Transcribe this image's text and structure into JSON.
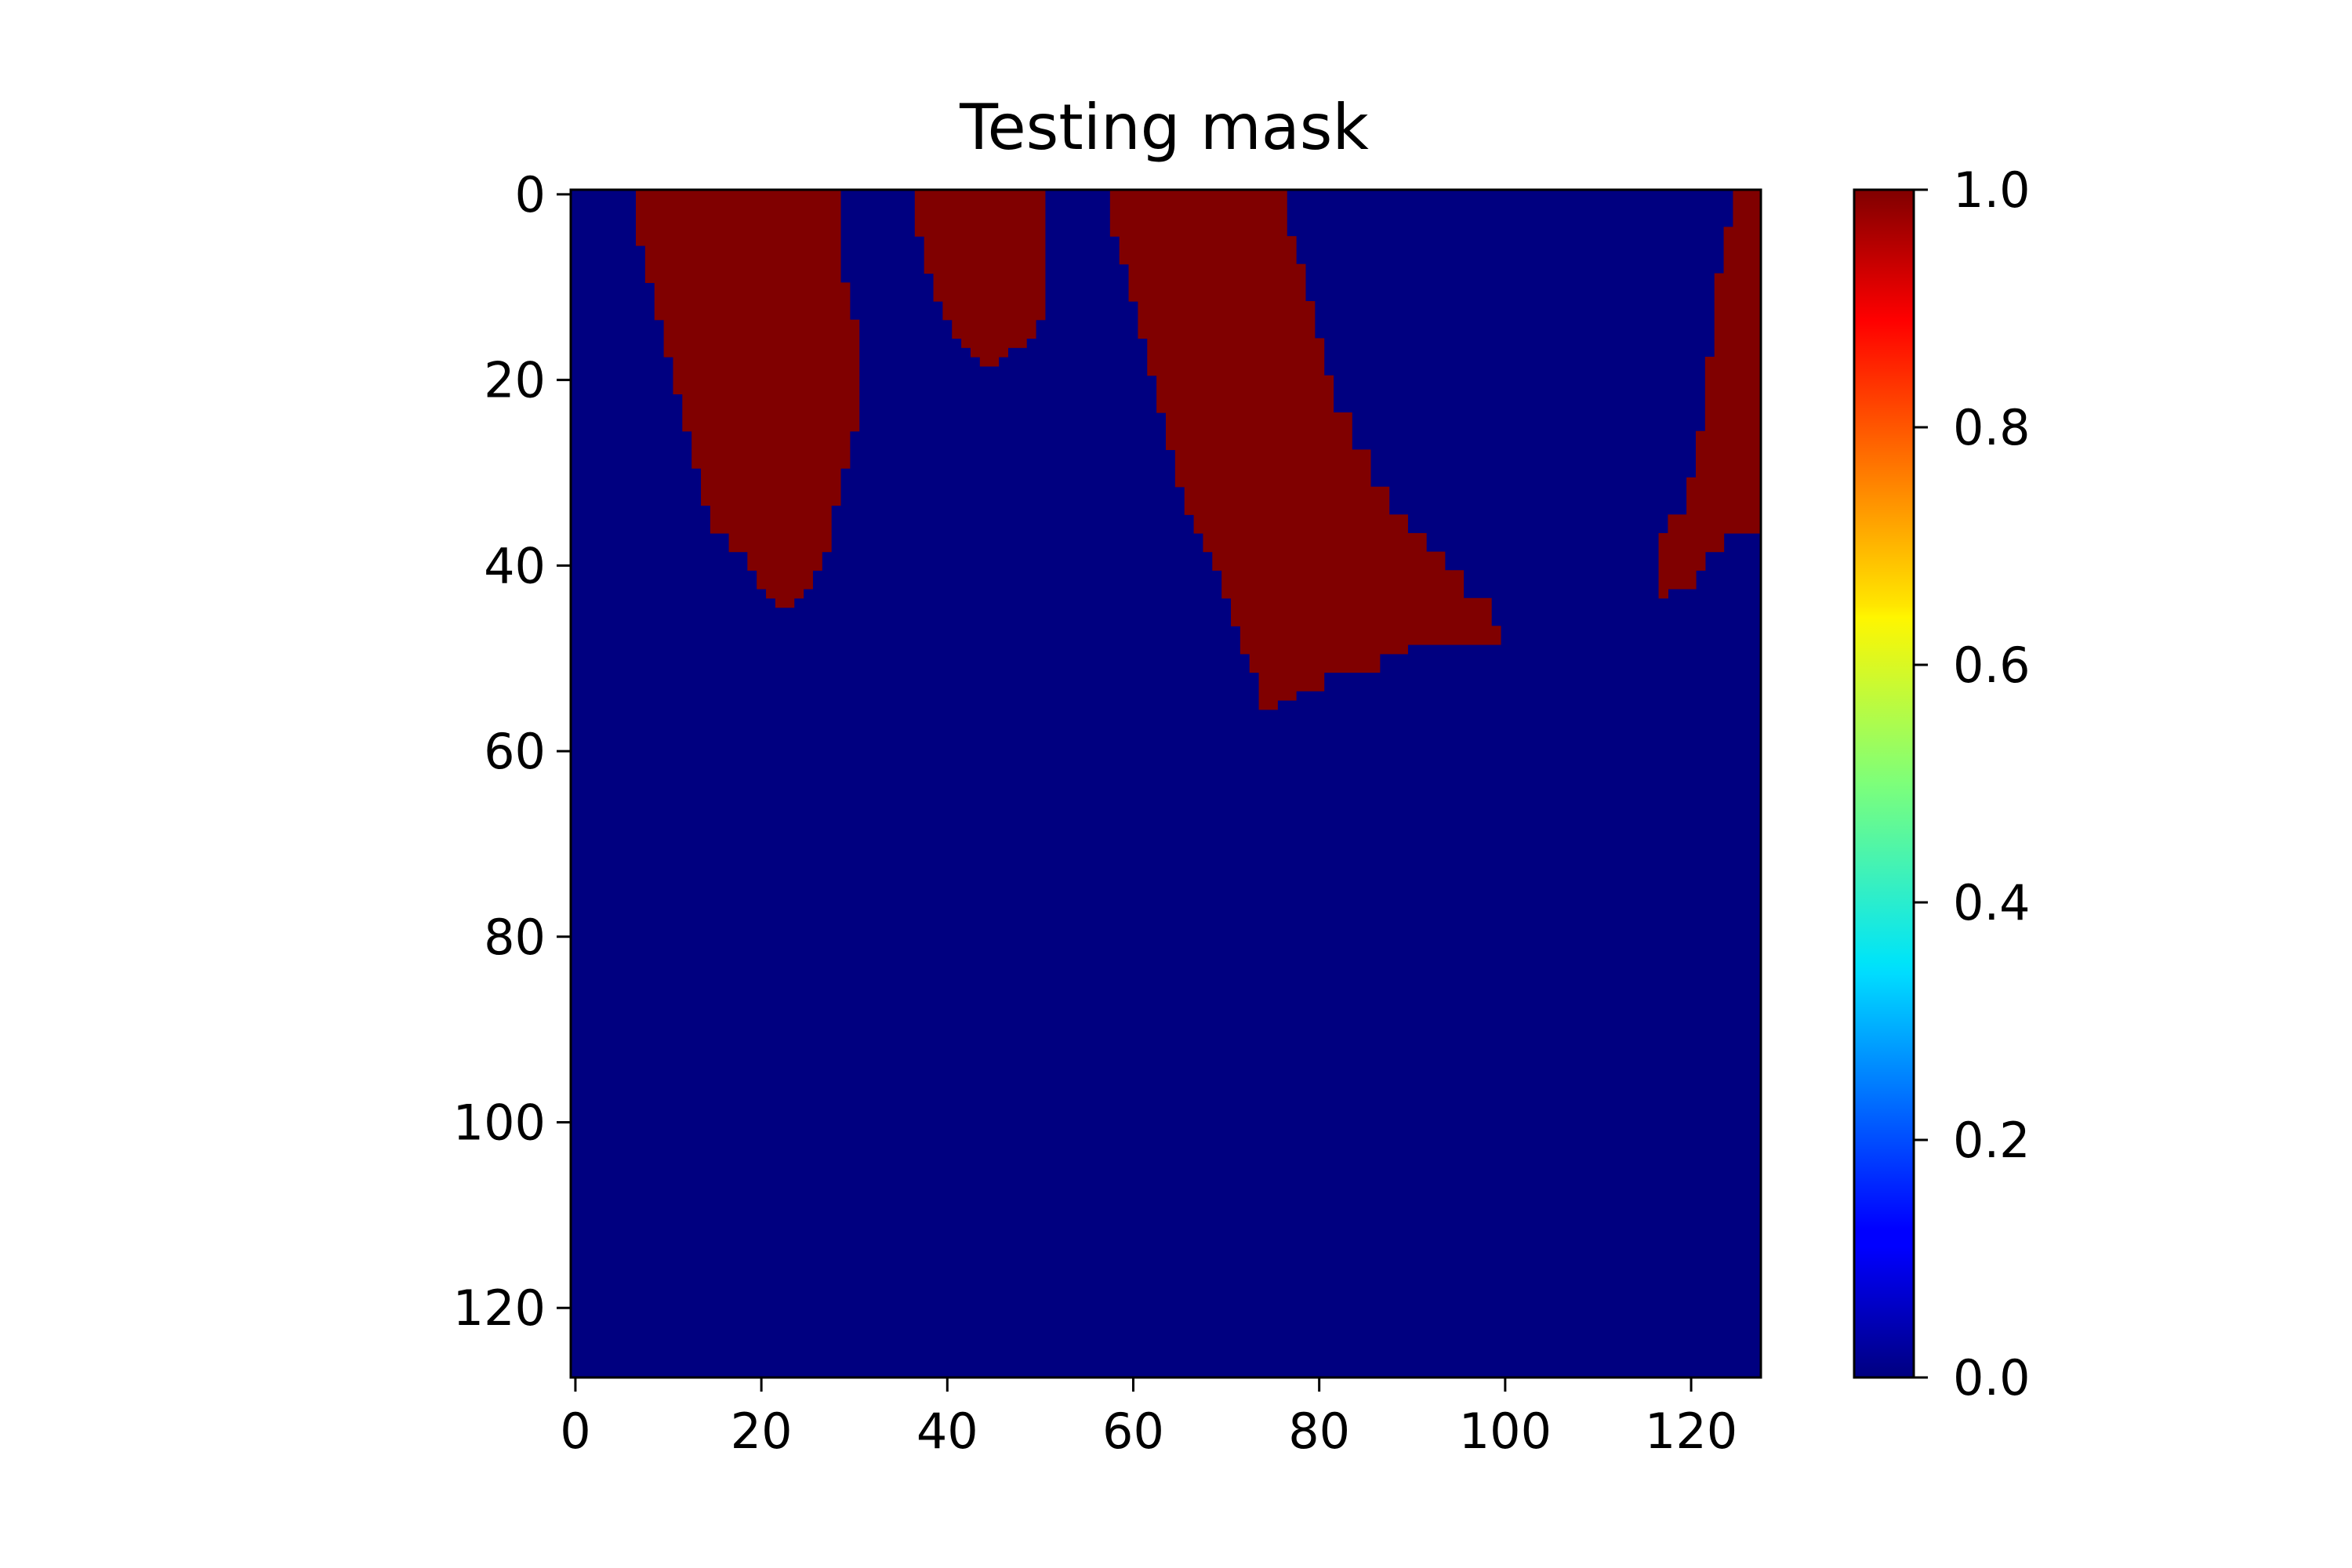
{
  "chart_data": {
    "type": "heatmap",
    "title": "Testing mask",
    "xlabel": "",
    "ylabel": "",
    "grid": false,
    "colormap": "jet",
    "xlim": [
      -0.5,
      127.5
    ],
    "ylim": [
      127.5,
      -0.5
    ],
    "x_ticks": [
      0,
      20,
      40,
      60,
      80,
      100,
      120
    ],
    "y_ticks": [
      0,
      20,
      40,
      60,
      80,
      100,
      120
    ],
    "x_tick_labels": [
      "0",
      "20",
      "40",
      "60",
      "80",
      "100",
      "120"
    ],
    "y_tick_labels": [
      "0",
      "20",
      "40",
      "60",
      "80",
      "100",
      "120"
    ],
    "colorbar": {
      "range": [
        0.0,
        1.0
      ],
      "ticks": [
        0.0,
        0.2,
        0.4,
        0.6,
        0.8,
        1.0
      ],
      "tick_labels": [
        "0.0",
        "0.2",
        "0.4",
        "0.6",
        "0.8",
        "1.0"
      ]
    },
    "grid_size": [
      128,
      128
    ],
    "background_value": 0,
    "regions_value": 1,
    "regions": [
      {
        "name": "region-1",
        "top": [
          [
            7,
            29
          ],
          [
            10,
            30
          ],
          [
            12,
            30
          ]
        ],
        "boundary": [
          [
            0,
            7,
            29
          ],
          [
            6,
            8,
            29
          ],
          [
            10,
            9,
            30
          ],
          [
            14,
            10,
            31
          ],
          [
            18,
            11,
            31
          ],
          [
            22,
            12,
            31
          ],
          [
            26,
            13,
            30
          ],
          [
            30,
            14,
            29
          ],
          [
            34,
            15,
            28
          ],
          [
            37,
            17,
            28
          ],
          [
            39,
            19,
            27
          ],
          [
            41,
            20,
            26
          ],
          [
            43,
            21,
            25
          ],
          [
            44,
            22,
            24
          ]
        ]
      },
      {
        "name": "region-2",
        "boundary": [
          [
            0,
            37,
            51
          ],
          [
            5,
            38,
            51
          ],
          [
            9,
            39,
            51
          ],
          [
            12,
            40,
            51
          ],
          [
            14,
            41,
            50
          ],
          [
            16,
            42,
            49
          ],
          [
            17,
            43,
            47
          ],
          [
            18,
            44,
            46
          ]
        ]
      },
      {
        "name": "region-3",
        "boundary": [
          [
            0,
            58,
            77
          ],
          [
            5,
            59,
            78
          ],
          [
            8,
            60,
            79
          ],
          [
            12,
            61,
            80
          ],
          [
            16,
            62,
            81
          ],
          [
            20,
            63,
            82
          ],
          [
            24,
            64,
            84
          ],
          [
            28,
            65,
            86
          ],
          [
            32,
            66,
            88
          ],
          [
            35,
            67,
            90
          ],
          [
            37,
            68,
            92
          ],
          [
            39,
            69,
            94
          ],
          [
            41,
            70,
            96
          ],
          [
            44,
            71,
            99
          ],
          [
            47,
            72,
            100
          ],
          [
            49,
            72,
            90
          ],
          [
            50,
            73,
            87
          ],
          [
            52,
            74,
            81
          ],
          [
            54,
            74,
            78
          ],
          [
            55,
            74,
            76
          ]
        ]
      },
      {
        "name": "region-4",
        "boundary": [
          [
            0,
            125,
            128
          ],
          [
            4,
            124,
            128
          ],
          [
            9,
            123,
            128
          ],
          [
            18,
            122,
            128
          ],
          [
            26,
            121,
            128
          ],
          [
            31,
            120,
            128
          ],
          [
            35,
            118,
            128
          ],
          [
            37,
            117,
            124
          ],
          [
            39,
            117,
            122
          ],
          [
            41,
            117,
            121
          ],
          [
            43,
            117,
            118
          ]
        ]
      }
    ]
  }
}
